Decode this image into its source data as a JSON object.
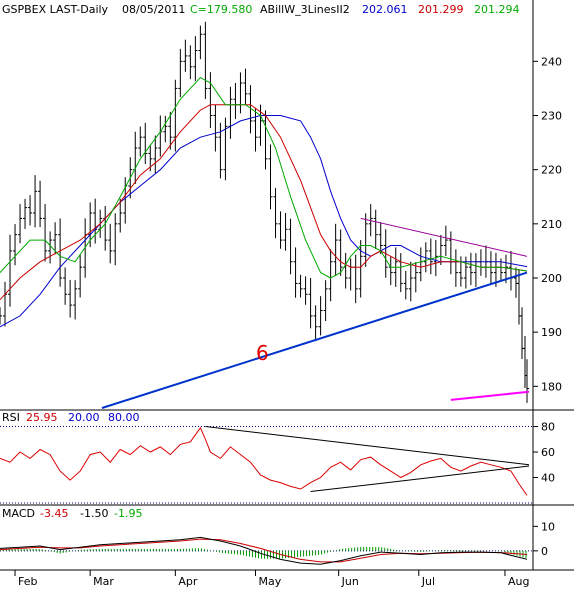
{
  "header": {
    "symbol": "GSPBEX LAST-Daily",
    "date": "08/05/2011",
    "close": "C=179.580",
    "indicator": "ABillW_3LinesII2",
    "line_blue": "202.061",
    "line_red": "201.299",
    "line_green": "201.294"
  },
  "annotation": "6",
  "colors": {
    "price_bar": "#000000",
    "ma_blue": "#0000cc",
    "ma_red": "#cc0000",
    "ma_green": "#00aa00",
    "trend_blue": "#0033cc",
    "trend_purple": "#990099",
    "magenta": "#ff00ff",
    "rsi_line": "#dd0000",
    "macd_line": "#000000",
    "signal_line": "#cc0000",
    "histogram": "#009900",
    "dotted": "#000080"
  },
  "chart_data": [
    {
      "type": "line",
      "panel": "price",
      "x_ticks": [
        "Feb",
        "Mar",
        "Apr",
        "May",
        "Jun",
        "Jul",
        "Aug"
      ],
      "y_ticks": [
        180,
        190,
        200,
        210,
        220,
        230,
        240
      ],
      "ylim": [
        176,
        248
      ],
      "price_path": [
        [
          0,
          193
        ],
        [
          5,
          197
        ],
        [
          10,
          205
        ],
        [
          15,
          208
        ],
        [
          20,
          211
        ],
        [
          25,
          213
        ],
        [
          30,
          212
        ],
        [
          35,
          216
        ],
        [
          40,
          211
        ],
        [
          45,
          205
        ],
        [
          50,
          207
        ],
        [
          55,
          208
        ],
        [
          60,
          200
        ],
        [
          65,
          197
        ],
        [
          70,
          195
        ],
        [
          75,
          198
        ],
        [
          80,
          202
        ],
        [
          85,
          208
        ],
        [
          90,
          212
        ],
        [
          95,
          209
        ],
        [
          100,
          211
        ],
        [
          105,
          207
        ],
        [
          110,
          205
        ],
        [
          115,
          210
        ],
        [
          120,
          212
        ],
        [
          125,
          217
        ],
        [
          130,
          220
        ],
        [
          135,
          224
        ],
        [
          140,
          226
        ],
        [
          145,
          223
        ],
        [
          150,
          222
        ],
        [
          155,
          224
        ],
        [
          160,
          227
        ],
        [
          165,
          228
        ],
        [
          170,
          226
        ],
        [
          175,
          235
        ],
        [
          180,
          240
        ],
        [
          185,
          241
        ],
        [
          190,
          239
        ],
        [
          195,
          242
        ],
        [
          200,
          245
        ],
        [
          205,
          235
        ],
        [
          210,
          230
        ],
        [
          215,
          226
        ],
        [
          220,
          220
        ],
        [
          225,
          228
        ],
        [
          230,
          233
        ],
        [
          235,
          232
        ],
        [
          240,
          236
        ],
        [
          245,
          234
        ],
        [
          250,
          229
        ],
        [
          255,
          226
        ],
        [
          260,
          229
        ],
        [
          265,
          222
        ],
        [
          270,
          215
        ],
        [
          275,
          210
        ],
        [
          280,
          207
        ],
        [
          285,
          209
        ],
        [
          290,
          203
        ],
        [
          295,
          199
        ],
        [
          300,
          198
        ],
        [
          305,
          197
        ],
        [
          310,
          193
        ],
        [
          315,
          191
        ],
        [
          320,
          194
        ],
        [
          325,
          198
        ],
        [
          330,
          203
        ],
        [
          335,
          207
        ],
        [
          340,
          202
        ],
        [
          345,
          200
        ],
        [
          350,
          202
        ],
        [
          355,
          198
        ],
        [
          360,
          204
        ],
        [
          365,
          210
        ],
        [
          370,
          211
        ],
        [
          375,
          208
        ],
        [
          380,
          206
        ],
        [
          385,
          202
        ],
        [
          390,
          201
        ],
        [
          395,
          203
        ],
        [
          400,
          199
        ],
        [
          405,
          198
        ],
        [
          410,
          200
        ],
        [
          415,
          201
        ],
        [
          420,
          203
        ],
        [
          425,
          205
        ],
        [
          430,
          203
        ],
        [
          435,
          204
        ],
        [
          440,
          206
        ],
        [
          445,
          207
        ],
        [
          450,
          203
        ],
        [
          455,
          201
        ],
        [
          460,
          200
        ],
        [
          465,
          202
        ],
        [
          470,
          201
        ],
        [
          475,
          203
        ],
        [
          480,
          202
        ],
        [
          485,
          203
        ],
        [
          490,
          201
        ],
        [
          495,
          202
        ],
        [
          500,
          201
        ],
        [
          505,
          202
        ],
        [
          510,
          200
        ],
        [
          515,
          199
        ],
        [
          518,
          193
        ],
        [
          521,
          187
        ],
        [
          524,
          182
        ],
        [
          526,
          179.6
        ]
      ],
      "ma_blue": [
        [
          0,
          191
        ],
        [
          20,
          193
        ],
        [
          40,
          197
        ],
        [
          60,
          202
        ],
        [
          80,
          206
        ],
        [
          100,
          210
        ],
        [
          120,
          214
        ],
        [
          140,
          217
        ],
        [
          160,
          220
        ],
        [
          180,
          224
        ],
        [
          200,
          226
        ],
        [
          220,
          227
        ],
        [
          240,
          229
        ],
        [
          260,
          230
        ],
        [
          280,
          230
        ],
        [
          300,
          229
        ],
        [
          310,
          226
        ],
        [
          320,
          222
        ],
        [
          330,
          216
        ],
        [
          340,
          211
        ],
        [
          350,
          207
        ],
        [
          360,
          205
        ],
        [
          370,
          204
        ],
        [
          380,
          205
        ],
        [
          390,
          206
        ],
        [
          400,
          206
        ],
        [
          410,
          205
        ],
        [
          420,
          204
        ],
        [
          440,
          203
        ],
        [
          460,
          203
        ],
        [
          480,
          203
        ],
        [
          500,
          203
        ],
        [
          526,
          202.1
        ]
      ],
      "ma_red": [
        [
          0,
          196
        ],
        [
          20,
          200
        ],
        [
          40,
          203
        ],
        [
          60,
          205
        ],
        [
          80,
          207
        ],
        [
          100,
          210
        ],
        [
          120,
          214
        ],
        [
          140,
          219
        ],
        [
          160,
          222
        ],
        [
          180,
          227
        ],
        [
          200,
          231
        ],
        [
          210,
          232
        ],
        [
          230,
          232
        ],
        [
          250,
          232
        ],
        [
          265,
          230
        ],
        [
          280,
          226
        ],
        [
          300,
          218
        ],
        [
          310,
          213
        ],
        [
          320,
          208
        ],
        [
          330,
          205
        ],
        [
          340,
          203
        ],
        [
          350,
          202
        ],
        [
          360,
          202
        ],
        [
          370,
          204
        ],
        [
          380,
          205
        ],
        [
          390,
          204
        ],
        [
          400,
          203
        ],
        [
          420,
          202
        ],
        [
          440,
          203
        ],
        [
          460,
          203
        ],
        [
          480,
          202
        ],
        [
          500,
          202
        ],
        [
          526,
          201.3
        ]
      ],
      "ma_green": [
        [
          0,
          201
        ],
        [
          15,
          204
        ],
        [
          30,
          207
        ],
        [
          45,
          207
        ],
        [
          60,
          204
        ],
        [
          75,
          203
        ],
        [
          90,
          207
        ],
        [
          105,
          210
        ],
        [
          120,
          215
        ],
        [
          140,
          222
        ],
        [
          160,
          227
        ],
        [
          180,
          233
        ],
        [
          200,
          237
        ],
        [
          210,
          236
        ],
        [
          225,
          232
        ],
        [
          245,
          232
        ],
        [
          260,
          230
        ],
        [
          275,
          224
        ],
        [
          290,
          215
        ],
        [
          305,
          207
        ],
        [
          320,
          201
        ],
        [
          330,
          200
        ],
        [
          340,
          201
        ],
        [
          350,
          204
        ],
        [
          360,
          206
        ],
        [
          370,
          206
        ],
        [
          380,
          205
        ],
        [
          390,
          202
        ],
        [
          400,
          202
        ],
        [
          420,
          203
        ],
        [
          440,
          204
        ],
        [
          460,
          203
        ],
        [
          480,
          202
        ],
        [
          500,
          202
        ],
        [
          526,
          201.3
        ]
      ],
      "trendline_support": [
        [
          0,
          170
        ],
        [
          526,
          201
        ]
      ],
      "trendline_resistance": [
        [
          360,
          211
        ],
        [
          526,
          204
        ]
      ],
      "magenta_line": [
        [
          450,
          177.5
        ],
        [
          528,
          179
        ]
      ]
    },
    {
      "type": "line",
      "panel": "rsi",
      "label": "RSI",
      "values_header": [
        "25.95",
        "20.00",
        "80.00"
      ],
      "y_ticks": [
        40,
        60,
        80
      ],
      "ylim": [
        20,
        82
      ],
      "rsi": [
        [
          0,
          55
        ],
        [
          10,
          52
        ],
        [
          20,
          60
        ],
        [
          30,
          55
        ],
        [
          40,
          62
        ],
        [
          50,
          58
        ],
        [
          60,
          45
        ],
        [
          70,
          38
        ],
        [
          80,
          45
        ],
        [
          90,
          58
        ],
        [
          100,
          60
        ],
        [
          110,
          52
        ],
        [
          120,
          62
        ],
        [
          130,
          58
        ],
        [
          140,
          65
        ],
        [
          150,
          60
        ],
        [
          160,
          64
        ],
        [
          170,
          58
        ],
        [
          180,
          66
        ],
        [
          190,
          68
        ],
        [
          200,
          79
        ],
        [
          205,
          70
        ],
        [
          210,
          60
        ],
        [
          220,
          55
        ],
        [
          230,
          64
        ],
        [
          240,
          58
        ],
        [
          250,
          52
        ],
        [
          260,
          42
        ],
        [
          270,
          38
        ],
        [
          280,
          36
        ],
        [
          290,
          33
        ],
        [
          300,
          31
        ],
        [
          310,
          36
        ],
        [
          320,
          40
        ],
        [
          330,
          48
        ],
        [
          340,
          52
        ],
        [
          350,
          46
        ],
        [
          360,
          54
        ],
        [
          370,
          56
        ],
        [
          380,
          50
        ],
        [
          390,
          45
        ],
        [
          400,
          40
        ],
        [
          410,
          44
        ],
        [
          420,
          50
        ],
        [
          430,
          53
        ],
        [
          440,
          55
        ],
        [
          450,
          48
        ],
        [
          460,
          45
        ],
        [
          470,
          49
        ],
        [
          480,
          52
        ],
        [
          490,
          50
        ],
        [
          500,
          48
        ],
        [
          510,
          45
        ],
        [
          518,
          35
        ],
        [
          526,
          26
        ]
      ],
      "trend_upper": [
        [
          205,
          80
        ],
        [
          528,
          50
        ]
      ],
      "trend_lower": [
        [
          310,
          29
        ],
        [
          528,
          49
        ]
      ]
    },
    {
      "type": "line",
      "panel": "macd",
      "label": "MACD",
      "values_header": [
        "-3.45",
        "-1.50",
        "-1.95"
      ],
      "y_ticks": [
        0,
        10
      ],
      "ylim": [
        -7,
        13
      ],
      "macd": [
        [
          0,
          1
        ],
        [
          20,
          1.5
        ],
        [
          40,
          2
        ],
        [
          60,
          0.5
        ],
        [
          80,
          1.5
        ],
        [
          100,
          2.5
        ],
        [
          120,
          3
        ],
        [
          140,
          3.5
        ],
        [
          160,
          4
        ],
        [
          180,
          4.5
        ],
        [
          200,
          5.5
        ],
        [
          220,
          4
        ],
        [
          240,
          2
        ],
        [
          260,
          -1
        ],
        [
          280,
          -3.5
        ],
        [
          300,
          -5
        ],
        [
          320,
          -5.5
        ],
        [
          340,
          -4
        ],
        [
          360,
          -2
        ],
        [
          380,
          -0.5
        ],
        [
          400,
          -1
        ],
        [
          420,
          -1.5
        ],
        [
          440,
          -0.8
        ],
        [
          460,
          -0.5
        ],
        [
          480,
          -0.5
        ],
        [
          500,
          -0.8
        ],
        [
          526,
          -3.45
        ]
      ],
      "signal": [
        [
          0,
          0.5
        ],
        [
          20,
          1
        ],
        [
          40,
          1.5
        ],
        [
          60,
          1.2
        ],
        [
          80,
          1.2
        ],
        [
          100,
          2
        ],
        [
          120,
          2.5
        ],
        [
          140,
          3
        ],
        [
          160,
          3.5
        ],
        [
          180,
          4
        ],
        [
          200,
          4.8
        ],
        [
          220,
          4.5
        ],
        [
          240,
          3
        ],
        [
          260,
          1
        ],
        [
          280,
          -1.5
        ],
        [
          300,
          -3.5
        ],
        [
          320,
          -4.5
        ],
        [
          340,
          -4.5
        ],
        [
          360,
          -3
        ],
        [
          380,
          -1.5
        ],
        [
          400,
          -1
        ],
        [
          420,
          -1.2
        ],
        [
          440,
          -1
        ],
        [
          460,
          -0.7
        ],
        [
          480,
          -0.6
        ],
        [
          500,
          -0.7
        ],
        [
          526,
          -1.5
        ]
      ]
    }
  ]
}
